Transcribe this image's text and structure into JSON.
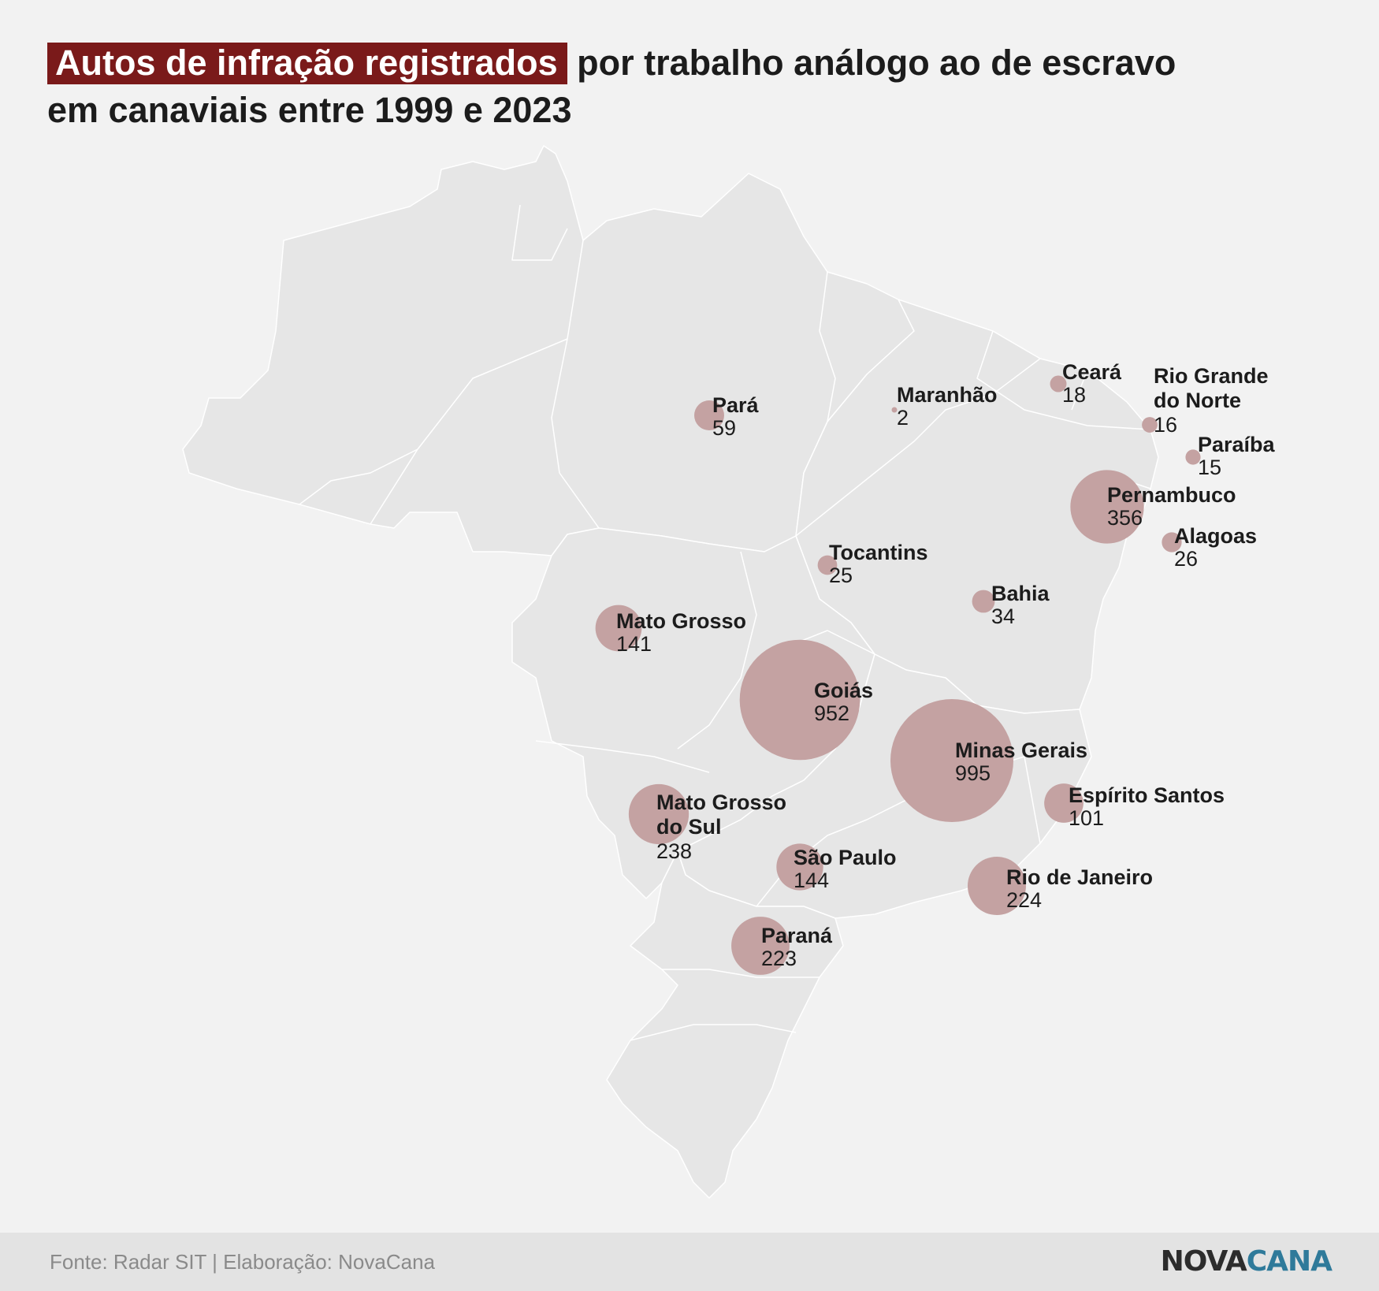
{
  "title": {
    "highlight": "Autos de infração registrados",
    "rest": " por trabalho análogo ao de escravo em canaviais entre 1999 e 2023"
  },
  "footer": {
    "source": "Fonte: Radar SIT | Elaboração: NovaCana",
    "logo_part1": "NOVA",
    "logo_part2": "CANA"
  },
  "colors": {
    "highlight_bg": "#7a1a1a",
    "bubble": "#c4a2a2",
    "land": "#e6e6e6",
    "border": "#ffffff",
    "logo_accent": "#2f7a9a"
  },
  "chart_data": {
    "type": "bubble-map",
    "region": "Brasil",
    "states": [
      {
        "name": "Pará",
        "value": 59
      },
      {
        "name": "Maranhão",
        "value": 2
      },
      {
        "name": "Ceará",
        "value": 18
      },
      {
        "name": "Rio Grande do Norte",
        "value": 16
      },
      {
        "name": "Paraíba",
        "value": 15
      },
      {
        "name": "Pernambuco",
        "value": 356
      },
      {
        "name": "Alagoas",
        "value": 26
      },
      {
        "name": "Tocantins",
        "value": 25
      },
      {
        "name": "Bahia",
        "value": 34
      },
      {
        "name": "Mato Grosso",
        "value": 141
      },
      {
        "name": "Goiás",
        "value": 952
      },
      {
        "name": "Minas Gerais",
        "value": 995
      },
      {
        "name": "Espírito Santos",
        "value": 101
      },
      {
        "name": "Mato Grosso do Sul",
        "value": 238
      },
      {
        "name": "São Paulo",
        "value": 144
      },
      {
        "name": "Rio de Janeiro",
        "value": 224
      },
      {
        "name": "Paraná",
        "value": 223
      }
    ]
  }
}
